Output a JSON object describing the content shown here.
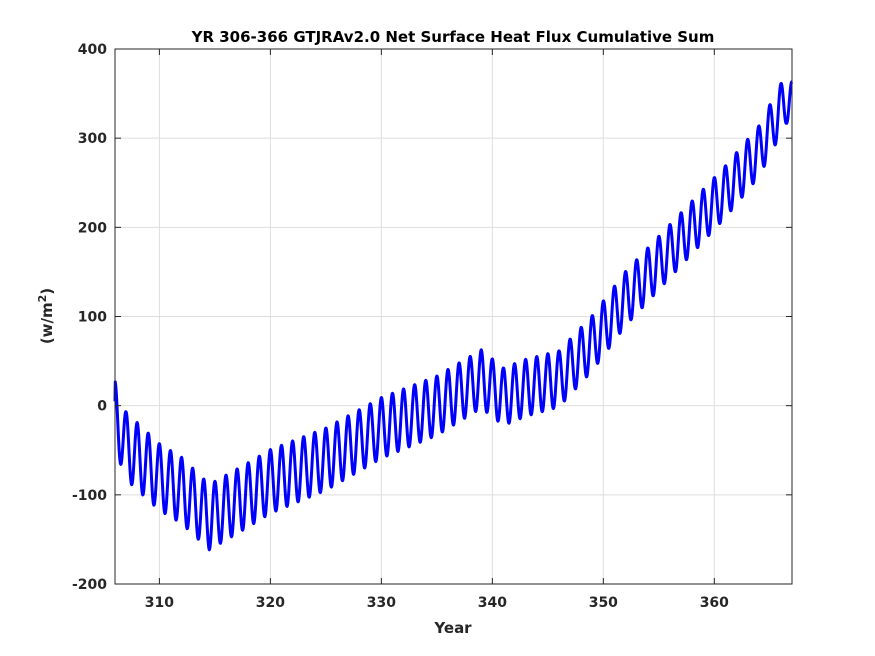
{
  "chart_data": {
    "type": "line",
    "title": "YR 306-366 GTJRAv2.0 Net Surface Heat Flux  Cumulative Sum",
    "xlabel": "Year",
    "ylabel": {
      "text": "(w/m",
      "superscript": "2",
      "close": ")"
    },
    "xlim": [
      306,
      367
    ],
    "ylim": [
      -200,
      400
    ],
    "xticks": [
      310,
      320,
      330,
      340,
      350,
      360
    ],
    "yticks": [
      -200,
      -100,
      0,
      100,
      200,
      300,
      400
    ],
    "grid": true,
    "series": [
      {
        "color": "#0000ff",
        "description": "cumulative sum with a seasonal cycle of one period per year",
        "trend": {
          "x": [
            306,
            307,
            310,
            312,
            314.5,
            318,
            320,
            325,
            330,
            335,
            339,
            341,
            343,
            346,
            349,
            352,
            355,
            358,
            361,
            364,
            366.5,
            367
          ],
          "y": [
            -10,
            -45,
            -80,
            -95,
            -125,
            -100,
            -85,
            -60,
            -25,
            0,
            30,
            10,
            20,
            30,
            70,
            120,
            160,
            200,
            240,
            285,
            345,
            335
          ]
        },
        "seasonal_amplitude": {
          "x": [
            306,
            367
          ],
          "y": [
            38,
            28
          ]
        },
        "start_value": 5
      }
    ]
  }
}
